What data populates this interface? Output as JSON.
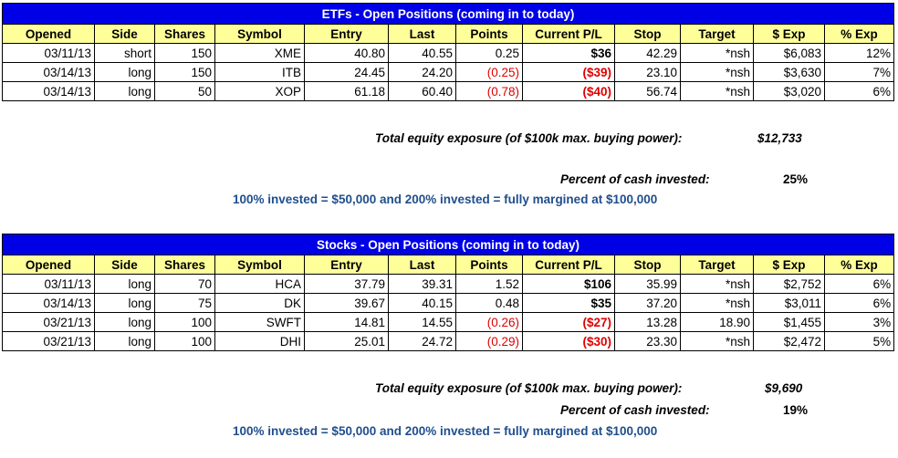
{
  "columns": [
    "Opened",
    "Side",
    "Shares",
    "Symbol",
    "Entry",
    "Last",
    "Points",
    "Current P/L",
    "Stop",
    "Target",
    "$ Exp",
    "% Exp"
  ],
  "etfs": {
    "title": "ETFs - Open Positions (coming in to today)",
    "rows": [
      {
        "opened": "03/11/13",
        "side": "short",
        "shares": "150",
        "symbol": "XME",
        "entry": "40.80",
        "last": "40.55",
        "points": "0.25",
        "pl": "$36",
        "stop": "42.29",
        "target": "*nsh",
        "exp": "$6,083",
        "pct": "12%",
        "negative": false
      },
      {
        "opened": "03/14/13",
        "side": "long",
        "shares": "150",
        "symbol": "ITB",
        "entry": "24.45",
        "last": "24.20",
        "points": "(0.25)",
        "pl": "($39)",
        "stop": "23.10",
        "target": "*nsh",
        "exp": "$3,630",
        "pct": "7%",
        "negative": true
      },
      {
        "opened": "03/14/13",
        "side": "long",
        "shares": "50",
        "symbol": "XOP",
        "entry": "61.18",
        "last": "60.40",
        "points": "(0.78)",
        "pl": "($40)",
        "stop": "56.74",
        "target": "*nsh",
        "exp": "$3,020",
        "pct": "6%",
        "negative": true
      }
    ],
    "total_label": "Total equity exposure (of $100k max. buying power):",
    "total_value": "$12,733",
    "percent_label": "Percent of cash invested:",
    "percent_value": "25%",
    "note": "100% invested = $50,000 and 200% invested = fully margined at $100,000"
  },
  "stocks": {
    "title": "Stocks - Open Positions (coming in to today)",
    "rows": [
      {
        "opened": "03/11/13",
        "side": "long",
        "shares": "70",
        "symbol": "HCA",
        "entry": "37.79",
        "last": "39.31",
        "points": "1.52",
        "pl": "$106",
        "stop": "35.99",
        "target": "*nsh",
        "exp": "$2,752",
        "pct": "6%",
        "negative": false
      },
      {
        "opened": "03/14/13",
        "side": "long",
        "shares": "75",
        "symbol": "DK",
        "entry": "39.67",
        "last": "40.15",
        "points": "0.48",
        "pl": "$35",
        "stop": "37.20",
        "target": "*nsh",
        "exp": "$3,011",
        "pct": "6%",
        "negative": false
      },
      {
        "opened": "03/21/13",
        "side": "long",
        "shares": "100",
        "symbol": "SWFT",
        "entry": "14.81",
        "last": "14.55",
        "points": "(0.26)",
        "pl": "($27)",
        "stop": "13.28",
        "target": "18.90",
        "exp": "$1,455",
        "pct": "3%",
        "negative": true
      },
      {
        "opened": "03/21/13",
        "side": "long",
        "shares": "100",
        "symbol": "DHI",
        "entry": "25.01",
        "last": "24.72",
        "points": "(0.29)",
        "pl": "($30)",
        "stop": "23.30",
        "target": "*nsh",
        "exp": "$2,472",
        "pct": "5%",
        "negative": true
      }
    ],
    "total_label": "Total equity exposure (of $100k max. buying power):",
    "total_value": "$9,690",
    "percent_label": "Percent of cash invested:",
    "percent_value": "19%",
    "note": "100% invested = $50,000 and 200% invested = fully margined at $100,000"
  },
  "colors": {
    "title_bg": "#0000e6",
    "header_bg": "#ffff99",
    "negative": "#e00000",
    "note": "#1f4e8c"
  }
}
